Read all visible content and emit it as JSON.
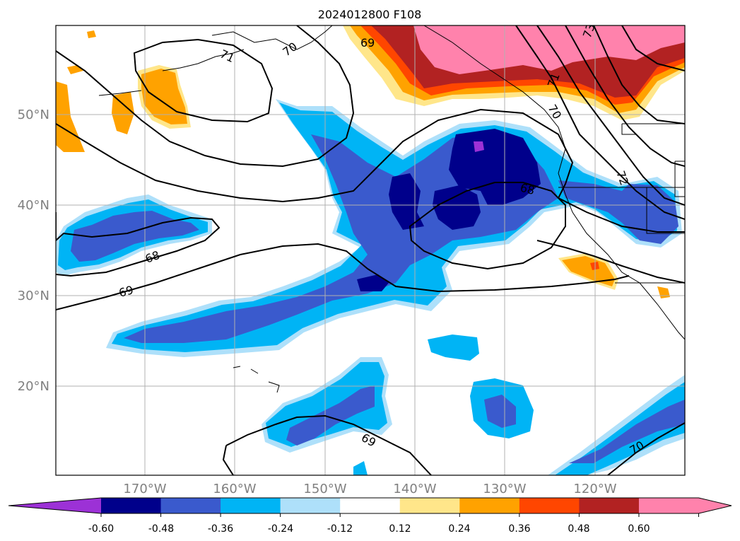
{
  "title": "2024012800 F108",
  "map": {
    "lon_labels": [
      "170°W",
      "160°W",
      "150°W",
      "140°W",
      "130°W",
      "120°W"
    ],
    "lat_labels": [
      "50°N",
      "40°N",
      "30°N",
      "20°N"
    ],
    "grid": true,
    "contour_labels": [
      "71",
      "70",
      "69",
      "69",
      "73",
      "71",
      "70",
      "72",
      "68",
      "68",
      "69",
      "70",
      "70"
    ]
  },
  "colorbar": {
    "ticks": [
      "-0.60",
      "-0.48",
      "-0.36",
      "-0.24",
      "-0.12",
      "0.12",
      "0.24",
      "0.36",
      "0.48",
      "0.60"
    ],
    "colors": [
      "#9c31d6",
      "#00008b",
      "#3a5acd",
      "#00b4f5",
      "#aee0fa",
      "#ffffff",
      "#ffe68a",
      "#ffa200",
      "#ff4600",
      "#b22222",
      "#ff82ac",
      "#ff82ac"
    ],
    "extend": "both"
  }
}
